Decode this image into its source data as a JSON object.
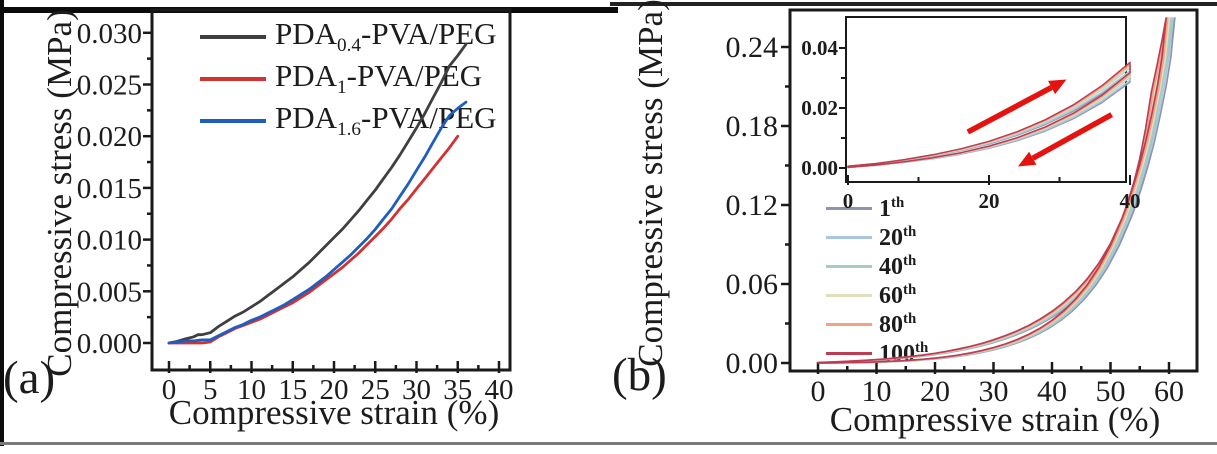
{
  "figure_caption_letters": {
    "a": "(a)",
    "b": "(b)"
  },
  "chart_data": [
    {
      "id": "panel-a",
      "type": "line",
      "panel_label": "(a)",
      "xlabel": "Compressive strain (%)",
      "ylabel": "Compressive stress (MPa)",
      "xlim": [
        0,
        40
      ],
      "ylim": [
        0.0,
        0.03
      ],
      "x_ticks": [
        0,
        5,
        10,
        15,
        20,
        25,
        30,
        35,
        40
      ],
      "y_ticks": [
        0.0,
        0.005,
        0.01,
        0.015,
        0.02,
        0.025,
        0.03
      ],
      "y_tick_labels": [
        "0.000",
        "0.005",
        "0.010",
        "0.015",
        "0.020",
        "0.025",
        "0.030"
      ],
      "grid": false,
      "legend_position": "top-left-inside",
      "series": [
        {
          "name": "PDA0.4-PVA/PEG",
          "label_parts": {
            "prefix": "PDA",
            "sub": "0.4",
            "suffix": "-PVA/PEG"
          },
          "color": "#3f3f3f",
          "points": [
            [
              0,
              0
            ],
            [
              1,
              0.00015
            ],
            [
              2,
              0.0004
            ],
            [
              3,
              0.0006
            ],
            [
              3.5,
              0.0008
            ],
            [
              4,
              0.0008
            ],
            [
              5,
              0.001
            ],
            [
              6,
              0.0016
            ],
            [
              7,
              0.0021
            ],
            [
              8,
              0.0026
            ],
            [
              9,
              0.003
            ],
            [
              10,
              0.0035
            ],
            [
              11,
              0.004
            ],
            [
              12,
              0.0046
            ],
            [
              13,
              0.0052
            ],
            [
              14,
              0.0058
            ],
            [
              15,
              0.0064
            ],
            [
              16,
              0.0071
            ],
            [
              17,
              0.0078
            ],
            [
              18,
              0.0086
            ],
            [
              19,
              0.0094
            ],
            [
              20,
              0.0102
            ],
            [
              21,
              0.011
            ],
            [
              22,
              0.0119
            ],
            [
              23,
              0.0128
            ],
            [
              24,
              0.0138
            ],
            [
              25,
              0.0148
            ],
            [
              26,
              0.0159
            ],
            [
              27,
              0.017
            ],
            [
              28,
              0.0182
            ],
            [
              29,
              0.0195
            ],
            [
              30,
              0.0208
            ],
            [
              31,
              0.0222
            ],
            [
              32,
              0.0237
            ],
            [
              33,
              0.0252
            ],
            [
              34,
              0.0268
            ],
            [
              35,
              0.0278
            ],
            [
              36,
              0.0289
            ]
          ]
        },
        {
          "name": "PDA1-PVA/PEG",
          "label_parts": {
            "prefix": "PDA",
            "sub": "1",
            "suffix": "-PVA/PEG"
          },
          "color": "#d23231",
          "points": [
            [
              0,
              0
            ],
            [
              1,
              0
            ],
            [
              2,
              0
            ],
            [
              3,
              0
            ],
            [
              4,
              0
            ],
            [
              5,
              0.0001
            ],
            [
              6,
              0.0006
            ],
            [
              7,
              0.001
            ],
            [
              8,
              0.0014
            ],
            [
              9,
              0.0017
            ],
            [
              10,
              0.002
            ],
            [
              11,
              0.0023
            ],
            [
              12,
              0.0027
            ],
            [
              13,
              0.0031
            ],
            [
              14,
              0.0035
            ],
            [
              15,
              0.0039
            ],
            [
              16,
              0.0044
            ],
            [
              17,
              0.0049
            ],
            [
              18,
              0.0055
            ],
            [
              19,
              0.0061
            ],
            [
              20,
              0.0067
            ],
            [
              21,
              0.0073
            ],
            [
              22,
              0.008
            ],
            [
              23,
              0.0087
            ],
            [
              24,
              0.0095
            ],
            [
              25,
              0.0103
            ],
            [
              26,
              0.0111
            ],
            [
              27,
              0.012
            ],
            [
              28,
              0.013
            ],
            [
              29,
              0.0139
            ],
            [
              30,
              0.0149
            ],
            [
              31,
              0.0159
            ],
            [
              32,
              0.0169
            ],
            [
              33,
              0.0179
            ],
            [
              34,
              0.0189
            ],
            [
              35,
              0.02
            ]
          ]
        },
        {
          "name": "PDA1.6-PVA/PEG",
          "label_parts": {
            "prefix": "PDA",
            "sub": "1.6",
            "suffix": "-PVA/PEG"
          },
          "color": "#1f5ec1",
          "points": [
            [
              0,
              0
            ],
            [
              1,
              0.0001
            ],
            [
              2,
              0.0002
            ],
            [
              3,
              0.0002
            ],
            [
              4,
              0.0003
            ],
            [
              5,
              0.0003
            ],
            [
              6,
              0.0007
            ],
            [
              7,
              0.0011
            ],
            [
              8,
              0.0015
            ],
            [
              9,
              0.0018
            ],
            [
              10,
              0.0022
            ],
            [
              11,
              0.0025
            ],
            [
              12,
              0.0029
            ],
            [
              13,
              0.0033
            ],
            [
              14,
              0.0037
            ],
            [
              15,
              0.0042
            ],
            [
              16,
              0.0047
            ],
            [
              17,
              0.0052
            ],
            [
              18,
              0.0058
            ],
            [
              19,
              0.0064
            ],
            [
              20,
              0.0071
            ],
            [
              21,
              0.0078
            ],
            [
              22,
              0.0085
            ],
            [
              23,
              0.0093
            ],
            [
              24,
              0.0101
            ],
            [
              25,
              0.011
            ],
            [
              26,
              0.012
            ],
            [
              27,
              0.013
            ],
            [
              28,
              0.0142
            ],
            [
              29,
              0.0154
            ],
            [
              30,
              0.0167
            ],
            [
              31,
              0.018
            ],
            [
              32,
              0.0194
            ],
            [
              33,
              0.0208
            ],
            [
              34,
              0.022
            ],
            [
              35,
              0.0227
            ],
            [
              36,
              0.0233
            ]
          ]
        }
      ]
    },
    {
      "id": "panel-b-main",
      "type": "line",
      "subtype": "cyclic-hysteresis",
      "panel_label": "(b)",
      "xlabel": "Compressive strain (%)",
      "ylabel": "Compressive stress (MPa)",
      "xlim": [
        0,
        60
      ],
      "ylim": [
        0.0,
        0.24
      ],
      "x_ticks": [
        0,
        10,
        20,
        30,
        40,
        50,
        60
      ],
      "y_ticks": [
        0.0,
        0.06,
        0.12,
        0.18,
        0.24
      ],
      "y_tick_labels": [
        "0.00",
        "0.06",
        "0.12",
        "0.18",
        "0.24"
      ],
      "grid": false,
      "legend_position": "left-inside",
      "series": [
        {
          "name": "1th",
          "label_parts": {
            "num": "1",
            "sup": "th"
          },
          "color": "#8d95aa",
          "dx": 1.5,
          "yscale": 0.9
        },
        {
          "name": "20th",
          "label_parts": {
            "num": "20",
            "sup": "th"
          },
          "color": "#a9c6de",
          "dx": 1.18,
          "yscale": 0.92
        },
        {
          "name": "40th",
          "label_parts": {
            "num": "40",
            "sup": "th"
          },
          "color": "#a5ccc2",
          "dx": 0.88,
          "yscale": 0.95
        },
        {
          "name": "60th",
          "label_parts": {
            "num": "60",
            "sup": "th"
          },
          "color": "#dfdfbc",
          "dx": 0.58,
          "yscale": 0.96
        },
        {
          "name": "80th",
          "label_parts": {
            "num": "80",
            "sup": "th"
          },
          "color": "#f2a285",
          "dx": 0.3,
          "yscale": 0.98
        },
        {
          "name": "100th",
          "label_parts": {
            "num": "100",
            "sup": "th"
          },
          "color": "#bc3d53",
          "dx": 0.0,
          "yscale": 1.0
        }
      ],
      "loading": [
        [
          0,
          0.0004
        ],
        [
          2,
          0.0007
        ],
        [
          4,
          0.0011
        ],
        [
          6,
          0.0015
        ],
        [
          8,
          0.002
        ],
        [
          10,
          0.0026
        ],
        [
          12,
          0.0033
        ],
        [
          14,
          0.0041
        ],
        [
          16,
          0.005
        ],
        [
          18,
          0.0061
        ],
        [
          20,
          0.0074
        ],
        [
          22,
          0.0089
        ],
        [
          24,
          0.0106
        ],
        [
          26,
          0.0126
        ],
        [
          28,
          0.0149
        ],
        [
          30,
          0.0176
        ],
        [
          32,
          0.0207
        ],
        [
          34,
          0.0243
        ],
        [
          36,
          0.0285
        ],
        [
          38,
          0.0334
        ],
        [
          40,
          0.0392
        ],
        [
          42,
          0.046
        ],
        [
          44,
          0.0541
        ],
        [
          46,
          0.0638
        ],
        [
          48,
          0.0757
        ],
        [
          50,
          0.0907
        ],
        [
          52,
          0.1103
        ],
        [
          53,
          0.1225
        ],
        [
          54,
          0.1372
        ],
        [
          55,
          0.1552
        ],
        [
          56,
          0.1779
        ],
        [
          57,
          0.2062
        ],
        [
          58,
          0.227
        ],
        [
          58.8,
          0.245
        ],
        [
          59.5,
          0.262
        ]
      ],
      "unloading": [
        [
          59.5,
          0.262
        ],
        [
          58.8,
          0.232
        ],
        [
          58,
          0.21
        ],
        [
          57,
          0.188
        ],
        [
          56,
          0.168
        ],
        [
          55,
          0.151
        ],
        [
          54,
          0.136
        ],
        [
          53,
          0.122
        ],
        [
          52,
          0.11
        ],
        [
          50,
          0.0893
        ],
        [
          48,
          0.0726
        ],
        [
          46,
          0.0592
        ],
        [
          44,
          0.0484
        ],
        [
          42,
          0.0396
        ],
        [
          40,
          0.0324
        ],
        [
          38,
          0.0265
        ],
        [
          36,
          0.0217
        ],
        [
          34,
          0.0177
        ],
        [
          32,
          0.0144
        ],
        [
          30,
          0.0117
        ],
        [
          28,
          0.0094
        ],
        [
          26,
          0.0076
        ],
        [
          24,
          0.006
        ],
        [
          22,
          0.0048
        ],
        [
          20,
          0.0037
        ],
        [
          18,
          0.0029
        ],
        [
          16,
          0.0022
        ],
        [
          14,
          0.0016
        ],
        [
          12,
          0.0012
        ],
        [
          10,
          0.0008
        ],
        [
          8,
          0.0005
        ],
        [
          6,
          0.0003
        ],
        [
          4,
          0.0002
        ],
        [
          2,
          0.0001
        ],
        [
          0,
          0
        ]
      ]
    },
    {
      "id": "panel-b-inset",
      "type": "line",
      "subtype": "cyclic-hysteresis-inset",
      "xlim": [
        0,
        40
      ],
      "ylim": [
        0.0,
        0.04
      ],
      "x_ticks": [
        0,
        20,
        40
      ],
      "y_ticks": [
        0.0,
        0.02,
        0.04
      ],
      "y_tick_labels": [
        "0.00",
        "0.02",
        "0.04"
      ],
      "grid": false,
      "loading": [
        [
          0,
          0.0006
        ],
        [
          4,
          0.0015
        ],
        [
          8,
          0.0028
        ],
        [
          12,
          0.0044
        ],
        [
          16,
          0.0064
        ],
        [
          20,
          0.0089
        ],
        [
          24,
          0.0121
        ],
        [
          28,
          0.0161
        ],
        [
          32,
          0.0211
        ],
        [
          36,
          0.0274
        ],
        [
          40,
          0.0352
        ]
      ],
      "unloading": [
        [
          40,
          0.0318
        ],
        [
          36,
          0.0242
        ],
        [
          32,
          0.0183
        ],
        [
          28,
          0.0137
        ],
        [
          24,
          0.0101
        ],
        [
          20,
          0.0073
        ],
        [
          16,
          0.0051
        ],
        [
          12,
          0.0034
        ],
        [
          8,
          0.0021
        ],
        [
          4,
          0.001
        ],
        [
          0,
          0.0002
        ]
      ],
      "arrow_color": "#e51310",
      "arrows": [
        {
          "name": "loading-arrow",
          "from": [
            17,
            0.012
          ],
          "to": [
            31,
            0.0295
          ]
        },
        {
          "name": "unloading-arrow",
          "from": [
            37.4,
            0.0178
          ],
          "to": [
            24.1,
            0.0005
          ]
        }
      ]
    }
  ]
}
